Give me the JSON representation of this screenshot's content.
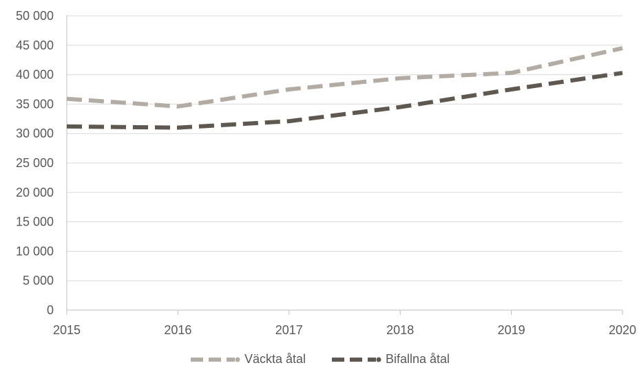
{
  "chart_data": {
    "type": "line",
    "title": "",
    "xlabel": "",
    "ylabel": "",
    "categories": [
      "2015",
      "2016",
      "2017",
      "2018",
      "2019",
      "2020"
    ],
    "ylim": [
      0,
      50000
    ],
    "yticks": [
      0,
      5000,
      10000,
      15000,
      20000,
      25000,
      30000,
      35000,
      40000,
      45000,
      50000
    ],
    "ytick_labels": [
      "0",
      "5 000",
      "10 000",
      "15 000",
      "20 000",
      "25 000",
      "30 000",
      "35 000",
      "40 000",
      "45 000",
      "50 000"
    ],
    "grid": "horizontal",
    "legend_position": "bottom",
    "series": [
      {
        "name": "Väckta åtal",
        "values": [
          35900,
          34600,
          37500,
          39400,
          40300,
          44500
        ],
        "color": "#b3aca4",
        "style": "dashed"
      },
      {
        "name": "Bifallna åtal",
        "values": [
          31200,
          31000,
          32100,
          34500,
          37500,
          40300
        ],
        "color": "#5e5850",
        "style": "dashed"
      }
    ]
  }
}
